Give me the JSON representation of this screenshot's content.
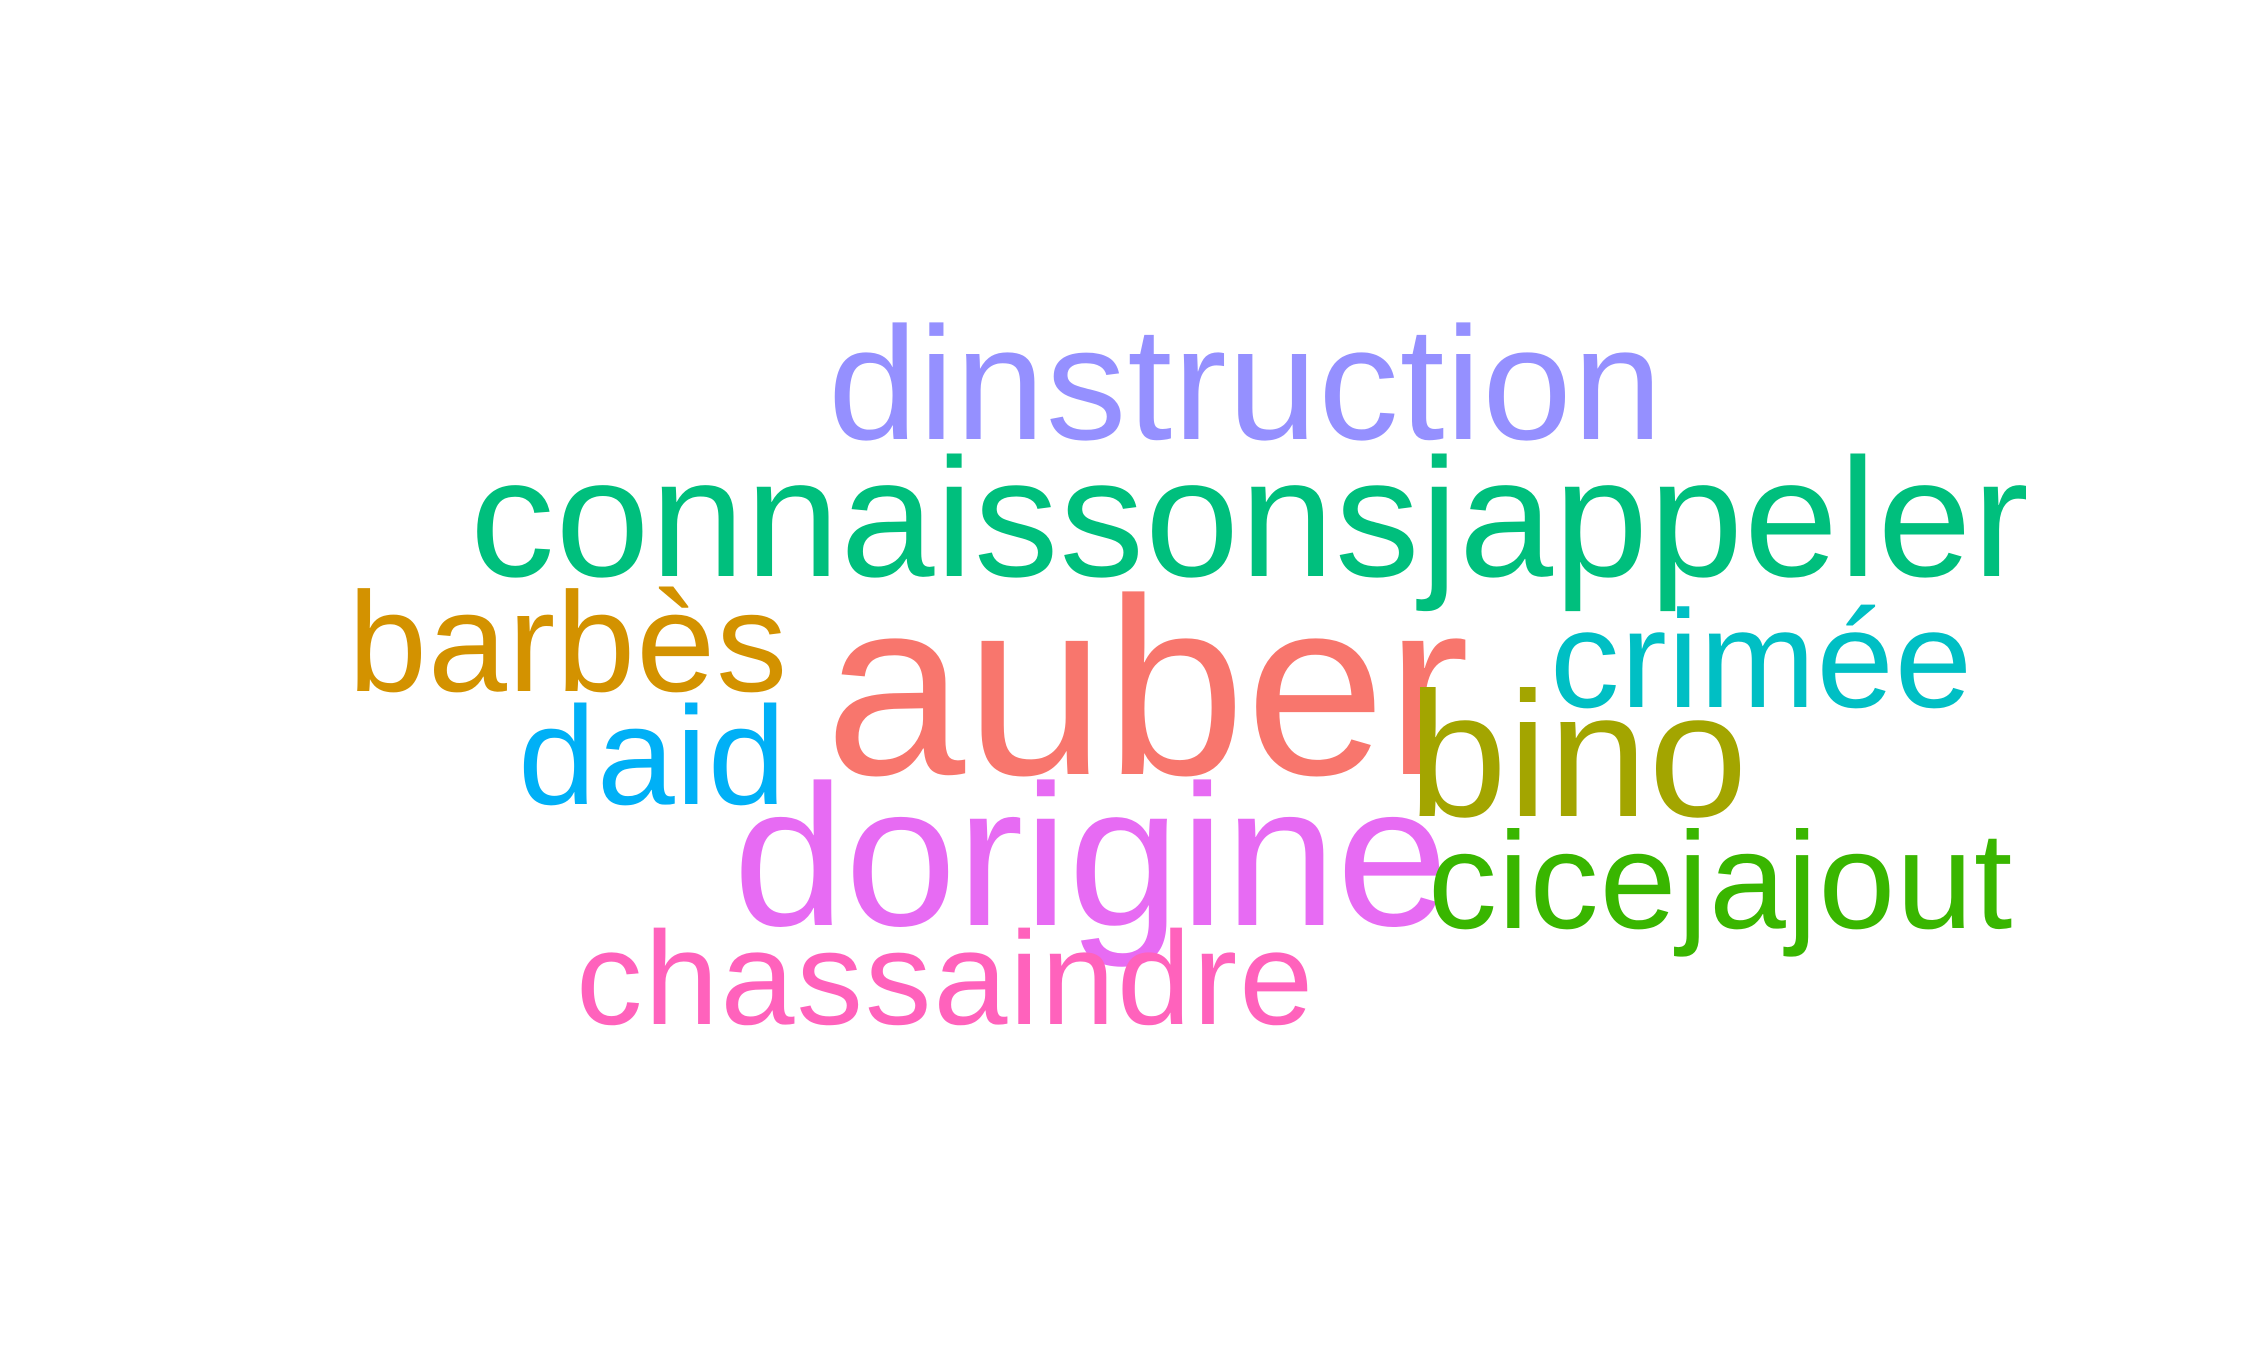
{
  "words": [
    {
      "text": "dinstruction",
      "color": "#9590FF"
    },
    {
      "text": "connaissonsjappeler",
      "color": "#00BF7D"
    },
    {
      "text": "barbès",
      "color": "#D39200"
    },
    {
      "text": "auber",
      "color": "#F8766D"
    },
    {
      "text": "crimée",
      "color": "#00BFC4"
    },
    {
      "text": "daid",
      "color": "#00B0F6"
    },
    {
      "text": "bino",
      "color": "#A3A500"
    },
    {
      "text": "dorigine",
      "color": "#E76BF3"
    },
    {
      "text": "cicejajout",
      "color": "#39B600"
    },
    {
      "text": "chassaindre",
      "color": "#FF62BC"
    }
  ]
}
